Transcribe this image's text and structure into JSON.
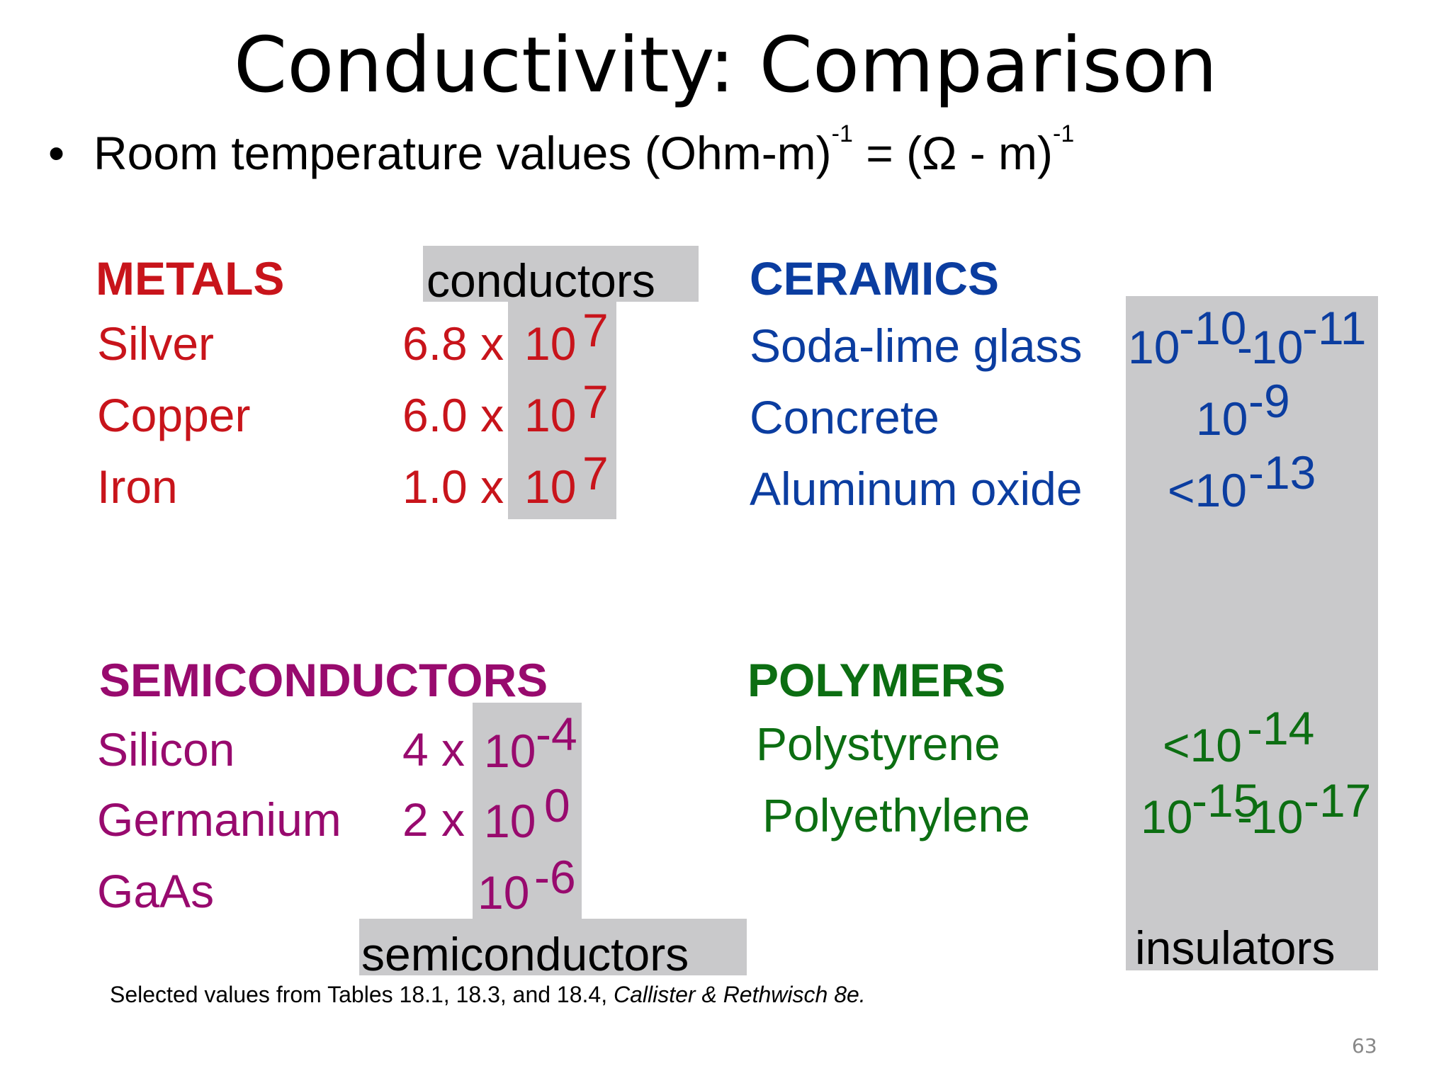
{
  "title": "Conductivity:  Comparison",
  "bullet": "•",
  "subtitle": {
    "text1": "Room temperature values (Ohm-m)",
    "sup1": "-1",
    "text2": " = (Ω - m)",
    "sup2": "-1"
  },
  "boxes": {
    "conductors": "conductors",
    "semiconductors": "semiconductors",
    "insulators": "insulators"
  },
  "metals": {
    "heading": "METALS",
    "items": [
      {
        "name": "Silver",
        "coef": "6.8 x ",
        "base": "10",
        "exp": "7"
      },
      {
        "name": "Copper",
        "coef": "6.0 x ",
        "base": "10",
        "exp": "7"
      },
      {
        "name": "Iron",
        "coef": "1.0 x ",
        "base": "10",
        "exp": "7"
      }
    ]
  },
  "semiconductors": {
    "heading": "SEMICONDUCTORS",
    "items": [
      {
        "name": "Silicon",
        "coef": "4 x ",
        "base": "10",
        "exp": "-4"
      },
      {
        "name": "Germanium",
        "coef": "2 x ",
        "base": "10",
        "exp": "0"
      },
      {
        "name": "GaAs",
        "coef": "",
        "base": "10",
        "exp": "-6"
      }
    ]
  },
  "ceramics": {
    "heading": "CERAMICS",
    "items": [
      {
        "name": "Soda-lime glass",
        "v1": "10",
        "e1": "-10",
        "sep": "-",
        "v2": "10",
        "e2": "-11"
      },
      {
        "name": "Concrete",
        "v1": "10",
        "e1": "-9"
      },
      {
        "name": "Aluminum oxide",
        "v1": "<10",
        "e1": "-13"
      }
    ]
  },
  "polymers": {
    "heading": "POLYMERS",
    "items": [
      {
        "name": "Polystyrene",
        "v1": "<10",
        "e1": "-14"
      },
      {
        "name": "Polyethylene",
        "v1": "10",
        "e1": "-15",
        "sep": "-",
        "v2": "10",
        "e2": "-17"
      }
    ]
  },
  "footnote": {
    "text": "Selected values from Tables 18.1, 18.3, and 18.4, ",
    "italic": "Callister & Rethwisch 8e."
  },
  "page_number": "63"
}
